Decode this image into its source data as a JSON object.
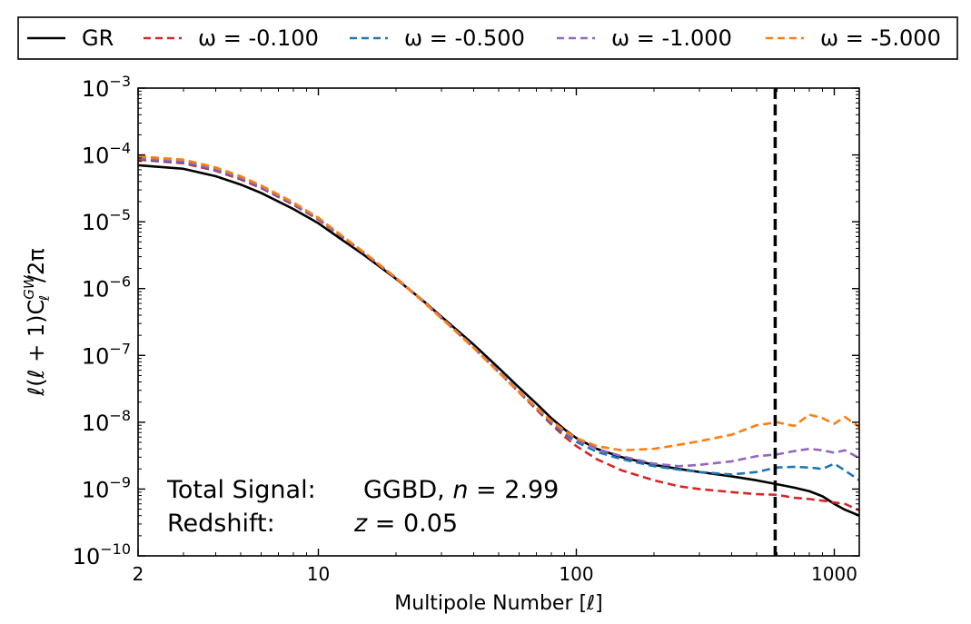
{
  "chart_data": {
    "type": "line",
    "xlabel": "Multipole Number [ℓ]",
    "ylabel": "ℓ(ℓ + 1)C",
    "ylabel_sub": "ℓ",
    "ylabel_sup": "GW",
    "ylabel_tail": "/2π",
    "xscale": "log",
    "yscale": "log",
    "xlim": [
      2,
      1250
    ],
    "ylim": [
      1e-10,
      0.001
    ],
    "x_ticks": [
      {
        "value": 2,
        "label": "2"
      },
      {
        "value": 10,
        "label": "10"
      },
      {
        "value": 100,
        "label": "100"
      },
      {
        "value": 1000,
        "label": "1000"
      }
    ],
    "y_ticks": [
      {
        "value": 0.001,
        "base": "10",
        "exp": "−3"
      },
      {
        "value": 0.0001,
        "base": "10",
        "exp": "−4"
      },
      {
        "value": 1e-05,
        "base": "10",
        "exp": "−5"
      },
      {
        "value": 1e-06,
        "base": "10",
        "exp": "−6"
      },
      {
        "value": 1e-07,
        "base": "10",
        "exp": "−7"
      },
      {
        "value": 1e-08,
        "base": "10",
        "exp": "−8"
      },
      {
        "value": 1e-09,
        "base": "10",
        "exp": "−9"
      },
      {
        "value": 1e-10,
        "base": "10",
        "exp": "−10"
      }
    ],
    "legend_position": "top (above plot, single row)",
    "vertical_line": {
      "x": 590,
      "style": "dashed",
      "color": "#000000"
    },
    "annotations": [
      {
        "label": "Total Signal:",
        "value_pre": "GGBD, ",
        "var": "n",
        "value_post": " = 2.99"
      },
      {
        "label": "Redshift:",
        "value_pre": "",
        "var": "z",
        "value_post": " = 0.05"
      }
    ],
    "series": [
      {
        "name": "GR",
        "color": "#000000",
        "dash": "solid",
        "points": [
          [
            2,
            7e-05
          ],
          [
            3,
            6.2e-05
          ],
          [
            4,
            4.8e-05
          ],
          [
            5,
            3.6e-05
          ],
          [
            6,
            2.7e-05
          ],
          [
            8,
            1.55e-05
          ],
          [
            10,
            9.5e-06
          ],
          [
            12,
            5.8e-06
          ],
          [
            15,
            3.2e-06
          ],
          [
            20,
            1.4e-06
          ],
          [
            25,
            7e-07
          ],
          [
            30,
            3.8e-07
          ],
          [
            40,
            1.45e-07
          ],
          [
            50,
            6.5e-08
          ],
          [
            60,
            3.3e-08
          ],
          [
            70,
            1.9e-08
          ],
          [
            80,
            1.15e-08
          ],
          [
            90,
            7.8e-09
          ],
          [
            100,
            5.8e-09
          ],
          [
            120,
            4e-09
          ],
          [
            150,
            3e-09
          ],
          [
            200,
            2.3e-09
          ],
          [
            250,
            2e-09
          ],
          [
            300,
            1.8e-09
          ],
          [
            400,
            1.55e-09
          ],
          [
            500,
            1.35e-09
          ],
          [
            600,
            1.18e-09
          ],
          [
            700,
            1.05e-09
          ],
          [
            800,
            9.3e-10
          ],
          [
            900,
            7.8e-10
          ],
          [
            1000,
            6e-10
          ],
          [
            1100,
            4.9e-10
          ],
          [
            1250,
            4e-10
          ]
        ]
      },
      {
        "name": "ω = -0.100",
        "color": "#d62728",
        "dash": "dashed",
        "points": [
          [
            2,
            8.5e-05
          ],
          [
            3,
            7.5e-05
          ],
          [
            4,
            5.8e-05
          ],
          [
            5,
            4.3e-05
          ],
          [
            6,
            3.2e-05
          ],
          [
            8,
            1.8e-05
          ],
          [
            10,
            1.08e-05
          ],
          [
            12,
            6.4e-06
          ],
          [
            15,
            3.4e-06
          ],
          [
            20,
            1.42e-06
          ],
          [
            25,
            6.8e-07
          ],
          [
            30,
            3.6e-07
          ],
          [
            40,
            1.3e-07
          ],
          [
            50,
            5.6e-08
          ],
          [
            60,
            2.8e-08
          ],
          [
            70,
            1.55e-08
          ],
          [
            80,
            9.3e-09
          ],
          [
            90,
            6.1e-09
          ],
          [
            100,
            4.4e-09
          ],
          [
            120,
            2.8e-09
          ],
          [
            150,
            1.9e-09
          ],
          [
            200,
            1.35e-09
          ],
          [
            250,
            1.1e-09
          ],
          [
            300,
            1e-09
          ],
          [
            400,
            9e-10
          ],
          [
            500,
            8.4e-10
          ],
          [
            600,
            8.2e-10
          ],
          [
            700,
            7.4e-10
          ],
          [
            800,
            7.1e-10
          ],
          [
            900,
            6.7e-10
          ],
          [
            1000,
            6.3e-10
          ],
          [
            1100,
            6e-10
          ],
          [
            1250,
            4.8e-10
          ]
        ]
      },
      {
        "name": "ω = -0.500",
        "color": "#1f77b4",
        "dash": "dashed",
        "points": [
          [
            2,
            8.8e-05
          ],
          [
            3,
            7.8e-05
          ],
          [
            4,
            6e-05
          ],
          [
            5,
            4.45e-05
          ],
          [
            6,
            3.3e-05
          ],
          [
            8,
            1.85e-05
          ],
          [
            10,
            1.1e-05
          ],
          [
            12,
            6.5e-06
          ],
          [
            15,
            3.45e-06
          ],
          [
            20,
            1.44e-06
          ],
          [
            25,
            6.9e-07
          ],
          [
            30,
            3.65e-07
          ],
          [
            40,
            1.32e-07
          ],
          [
            50,
            5.7e-08
          ],
          [
            60,
            2.85e-08
          ],
          [
            70,
            1.6e-08
          ],
          [
            80,
            9.8e-09
          ],
          [
            90,
            6.7e-09
          ],
          [
            100,
            5.1e-09
          ],
          [
            120,
            3.6e-09
          ],
          [
            150,
            2.8e-09
          ],
          [
            200,
            2.2e-09
          ],
          [
            250,
            1.95e-09
          ],
          [
            300,
            1.8e-09
          ],
          [
            400,
            1.65e-09
          ],
          [
            500,
            1.8e-09
          ],
          [
            600,
            2.1e-09
          ],
          [
            700,
            2.15e-09
          ],
          [
            800,
            2.1e-09
          ],
          [
            900,
            2e-09
          ],
          [
            1000,
            2.4e-09
          ],
          [
            1100,
            1.9e-09
          ],
          [
            1250,
            1.35e-09
          ]
        ]
      },
      {
        "name": "ω = -1.000",
        "color": "#9467bd",
        "dash": "dashed",
        "points": [
          [
            2,
            9e-05
          ],
          [
            3,
            8e-05
          ],
          [
            4,
            6.15e-05
          ],
          [
            5,
            4.55e-05
          ],
          [
            6,
            3.35e-05
          ],
          [
            8,
            1.88e-05
          ],
          [
            10,
            1.12e-05
          ],
          [
            12,
            6.6e-06
          ],
          [
            15,
            3.5e-06
          ],
          [
            20,
            1.45e-06
          ],
          [
            25,
            6.95e-07
          ],
          [
            30,
            3.7e-07
          ],
          [
            40,
            1.33e-07
          ],
          [
            50,
            5.75e-08
          ],
          [
            60,
            2.9e-08
          ],
          [
            70,
            1.65e-08
          ],
          [
            80,
            1.02e-08
          ],
          [
            90,
            7.1e-09
          ],
          [
            100,
            5.5e-09
          ],
          [
            120,
            4e-09
          ],
          [
            150,
            3.1e-09
          ],
          [
            200,
            2.4e-09
          ],
          [
            250,
            2.2e-09
          ],
          [
            300,
            2.3e-09
          ],
          [
            400,
            2.6e-09
          ],
          [
            500,
            3.1e-09
          ],
          [
            600,
            3.3e-09
          ],
          [
            700,
            3.7e-09
          ],
          [
            800,
            4e-09
          ],
          [
            900,
            3.8e-09
          ],
          [
            1000,
            3.5e-09
          ],
          [
            1100,
            3.8e-09
          ],
          [
            1250,
            2.9e-09
          ]
        ]
      },
      {
        "name": "ω = -5.000",
        "color": "#ff7f0e",
        "dash": "dashed",
        "points": [
          [
            2,
            9.5e-05
          ],
          [
            3,
            8.5e-05
          ],
          [
            4,
            6.5e-05
          ],
          [
            5,
            4.8e-05
          ],
          [
            6,
            3.5e-05
          ],
          [
            8,
            1.95e-05
          ],
          [
            10,
            1.15e-05
          ],
          [
            12,
            6.7e-06
          ],
          [
            15,
            3.5e-06
          ],
          [
            20,
            1.44e-06
          ],
          [
            25,
            6.9e-07
          ],
          [
            30,
            3.6e-07
          ],
          [
            40,
            1.3e-07
          ],
          [
            50,
            5.6e-08
          ],
          [
            60,
            2.85e-08
          ],
          [
            70,
            1.65e-08
          ],
          [
            80,
            1.05e-08
          ],
          [
            90,
            7.5e-09
          ],
          [
            100,
            5.8e-09
          ],
          [
            120,
            4.4e-09
          ],
          [
            150,
            3.8e-09
          ],
          [
            200,
            4e-09
          ],
          [
            250,
            4.6e-09
          ],
          [
            300,
            5.2e-09
          ],
          [
            400,
            6.5e-09
          ],
          [
            500,
            9e-09
          ],
          [
            600,
            1e-08
          ],
          [
            700,
            8.8e-09
          ],
          [
            800,
            1.3e-08
          ],
          [
            900,
            1.15e-08
          ],
          [
            1000,
            9.5e-09
          ],
          [
            1100,
            1.2e-08
          ],
          [
            1250,
            8.5e-09
          ]
        ]
      }
    ]
  }
}
